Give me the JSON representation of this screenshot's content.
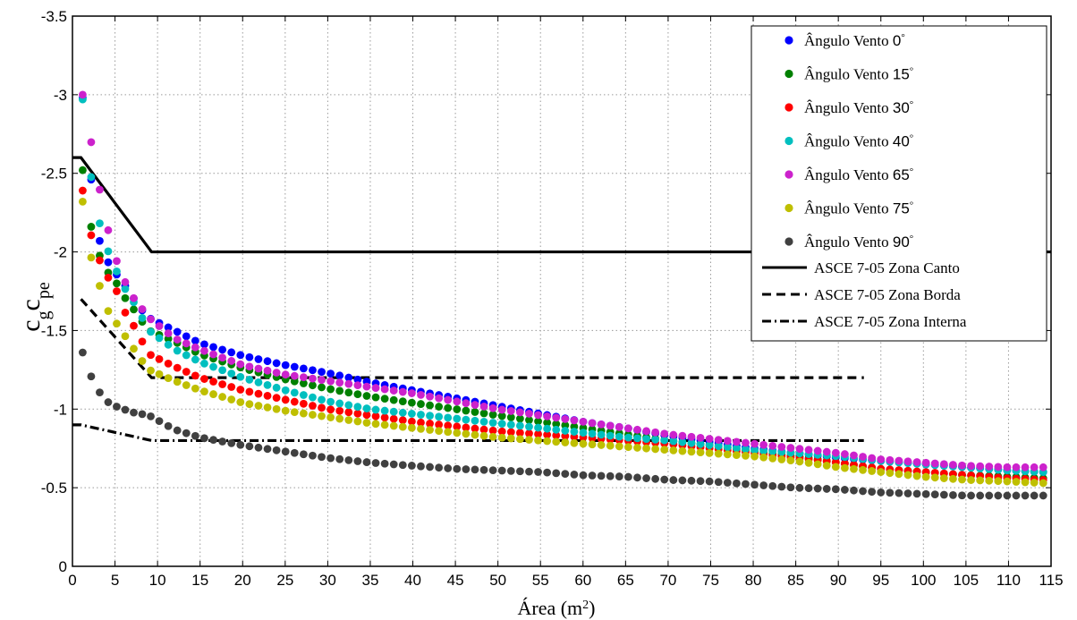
{
  "chart_data": {
    "type": "scatter",
    "title": "",
    "xlabel_main": "Área (m",
    "xlabel_sup": "2",
    "xlabel_close": ")",
    "ylabel_main": "c",
    "ylabel_sub1": "g",
    "ylabel_mid": "c",
    "ylabel_sub2": "pe",
    "xlim": [
      0,
      115
    ],
    "ylim": [
      0,
      -3.5
    ],
    "y_reversed": true,
    "grid": true,
    "legend_position": "top-right",
    "x_ticks": [
      "0",
      "5",
      "10",
      "15",
      "20",
      "25",
      "30",
      "35",
      "40",
      "45",
      "50",
      "55",
      "60",
      "65",
      "70",
      "75",
      "80",
      "85",
      "90",
      "95",
      "100",
      "105",
      "110",
      "115"
    ],
    "y_ticks": [
      "0",
      "-0.5",
      "-1",
      "-1.5",
      "-2",
      "-2.5",
      "-3",
      "-3.5"
    ],
    "series": [
      {
        "name": "Ângulo Vento",
        "angle": "0",
        "color": "#0000ff",
        "kind": "points",
        "anchors": [
          [
            1.2,
            -2.98
          ],
          [
            2,
            -2.55
          ],
          [
            3,
            -2.1
          ],
          [
            4,
            -1.95
          ],
          [
            5,
            -1.87
          ],
          [
            6,
            -1.8
          ],
          [
            7,
            -1.72
          ],
          [
            8,
            -1.64
          ],
          [
            9,
            -1.58
          ],
          [
            12,
            -1.5
          ],
          [
            15,
            -1.42
          ],
          [
            20,
            -1.34
          ],
          [
            25,
            -1.28
          ],
          [
            30,
            -1.23
          ],
          [
            35,
            -1.17
          ],
          [
            40,
            -1.12
          ],
          [
            45,
            -1.07
          ],
          [
            50,
            -1.02
          ],
          [
            55,
            -0.97
          ],
          [
            60,
            -0.92
          ],
          [
            65,
            -0.88
          ],
          [
            70,
            -0.83
          ],
          [
            75,
            -0.79
          ],
          [
            80,
            -0.75
          ],
          [
            85,
            -0.72
          ],
          [
            90,
            -0.69
          ],
          [
            95,
            -0.67
          ],
          [
            100,
            -0.65
          ],
          [
            105,
            -0.63
          ],
          [
            110,
            -0.61
          ],
          [
            114,
            -0.6
          ]
        ]
      },
      {
        "name": "Ângulo Vento",
        "angle": "15",
        "color": "#008000",
        "kind": "points",
        "anchors": [
          [
            1.2,
            -2.52
          ],
          [
            2,
            -2.2
          ],
          [
            3,
            -2.0
          ],
          [
            4,
            -1.88
          ],
          [
            5,
            -1.82
          ],
          [
            6,
            -1.72
          ],
          [
            7,
            -1.65
          ],
          [
            8,
            -1.57
          ],
          [
            9,
            -1.5
          ],
          [
            12,
            -1.43
          ],
          [
            15,
            -1.35
          ],
          [
            20,
            -1.26
          ],
          [
            25,
            -1.19
          ],
          [
            30,
            -1.13
          ],
          [
            35,
            -1.08
          ],
          [
            40,
            -1.04
          ],
          [
            45,
            -1.0
          ],
          [
            50,
            -0.96
          ],
          [
            55,
            -0.92
          ],
          [
            60,
            -0.88
          ],
          [
            65,
            -0.84
          ],
          [
            70,
            -0.8
          ],
          [
            75,
            -0.77
          ],
          [
            80,
            -0.73
          ],
          [
            85,
            -0.7
          ],
          [
            90,
            -0.66
          ],
          [
            95,
            -0.62
          ],
          [
            100,
            -0.6
          ],
          [
            105,
            -0.58
          ],
          [
            110,
            -0.57
          ],
          [
            114,
            -0.56
          ]
        ]
      },
      {
        "name": "Ângulo Vento",
        "angle": "30",
        "color": "#ff0000",
        "kind": "points",
        "anchors": [
          [
            1.2,
            -2.39
          ],
          [
            2,
            -2.14
          ],
          [
            3,
            -1.97
          ],
          [
            4,
            -1.85
          ],
          [
            5,
            -1.78
          ],
          [
            6,
            -1.63
          ],
          [
            7,
            -1.55
          ],
          [
            8,
            -1.45
          ],
          [
            9,
            -1.35
          ],
          [
            12,
            -1.27
          ],
          [
            15,
            -1.2
          ],
          [
            20,
            -1.12
          ],
          [
            25,
            -1.06
          ],
          [
            30,
            -1.0
          ],
          [
            35,
            -0.96
          ],
          [
            40,
            -0.92
          ],
          [
            45,
            -0.89
          ],
          [
            50,
            -0.86
          ],
          [
            55,
            -0.84
          ],
          [
            60,
            -0.82
          ],
          [
            65,
            -0.8
          ],
          [
            70,
            -0.78
          ],
          [
            75,
            -0.75
          ],
          [
            80,
            -0.72
          ],
          [
            85,
            -0.69
          ],
          [
            90,
            -0.66
          ],
          [
            95,
            -0.62
          ],
          [
            100,
            -0.6
          ],
          [
            105,
            -0.58
          ],
          [
            110,
            -0.56
          ],
          [
            114,
            -0.55
          ]
        ]
      },
      {
        "name": "Ângulo Vento",
        "angle": "40",
        "color": "#00bfbf",
        "kind": "points",
        "anchors": [
          [
            1.2,
            -2.97
          ],
          [
            2,
            -2.54
          ],
          [
            3,
            -2.22
          ],
          [
            4,
            -2.03
          ],
          [
            5,
            -1.9
          ],
          [
            6,
            -1.78
          ],
          [
            7,
            -1.7
          ],
          [
            8,
            -1.6
          ],
          [
            9,
            -1.5
          ],
          [
            12,
            -1.38
          ],
          [
            15,
            -1.3
          ],
          [
            20,
            -1.2
          ],
          [
            25,
            -1.12
          ],
          [
            30,
            -1.05
          ],
          [
            35,
            -1.0
          ],
          [
            40,
            -0.97
          ],
          [
            45,
            -0.94
          ],
          [
            50,
            -0.91
          ],
          [
            55,
            -0.88
          ],
          [
            60,
            -0.85
          ],
          [
            65,
            -0.82
          ],
          [
            70,
            -0.8
          ],
          [
            75,
            -0.77
          ],
          [
            80,
            -0.74
          ],
          [
            85,
            -0.72
          ],
          [
            90,
            -0.7
          ],
          [
            95,
            -0.67
          ],
          [
            100,
            -0.65
          ],
          [
            105,
            -0.63
          ],
          [
            110,
            -0.61
          ],
          [
            114,
            -0.6
          ]
        ]
      },
      {
        "name": "Ângulo Vento",
        "angle": "65",
        "color": "#cc22cc",
        "kind": "points",
        "anchors": [
          [
            1.2,
            -3.0
          ],
          [
            2,
            -2.76
          ],
          [
            3,
            -2.45
          ],
          [
            4,
            -2.18
          ],
          [
            5,
            -1.97
          ],
          [
            6,
            -1.83
          ],
          [
            7,
            -1.72
          ],
          [
            8,
            -1.65
          ],
          [
            9,
            -1.58
          ],
          [
            12,
            -1.45
          ],
          [
            15,
            -1.38
          ],
          [
            20,
            -1.28
          ],
          [
            25,
            -1.22
          ],
          [
            30,
            -1.18
          ],
          [
            35,
            -1.14
          ],
          [
            40,
            -1.1
          ],
          [
            45,
            -1.05
          ],
          [
            50,
            -1.0
          ],
          [
            55,
            -0.96
          ],
          [
            60,
            -0.92
          ],
          [
            65,
            -0.88
          ],
          [
            70,
            -0.84
          ],
          [
            75,
            -0.81
          ],
          [
            80,
            -0.78
          ],
          [
            85,
            -0.75
          ],
          [
            90,
            -0.72
          ],
          [
            95,
            -0.68
          ],
          [
            100,
            -0.66
          ],
          [
            105,
            -0.64
          ],
          [
            110,
            -0.63
          ],
          [
            114,
            -0.63
          ]
        ]
      },
      {
        "name": "Ângulo Vento",
        "angle": "75",
        "color": "#bfbf00",
        "kind": "points",
        "anchors": [
          [
            1.2,
            -2.32
          ],
          [
            2,
            -2.0
          ],
          [
            3,
            -1.82
          ],
          [
            4,
            -1.64
          ],
          [
            5,
            -1.56
          ],
          [
            6,
            -1.48
          ],
          [
            7,
            -1.4
          ],
          [
            8,
            -1.32
          ],
          [
            9,
            -1.25
          ],
          [
            12,
            -1.18
          ],
          [
            15,
            -1.12
          ],
          [
            20,
            -1.04
          ],
          [
            25,
            -0.99
          ],
          [
            30,
            -0.95
          ],
          [
            35,
            -0.91
          ],
          [
            40,
            -0.88
          ],
          [
            45,
            -0.85
          ],
          [
            50,
            -0.82
          ],
          [
            55,
            -0.8
          ],
          [
            60,
            -0.78
          ],
          [
            65,
            -0.76
          ],
          [
            70,
            -0.74
          ],
          [
            75,
            -0.72
          ],
          [
            80,
            -0.7
          ],
          [
            85,
            -0.67
          ],
          [
            90,
            -0.63
          ],
          [
            95,
            -0.6
          ],
          [
            100,
            -0.57
          ],
          [
            105,
            -0.55
          ],
          [
            110,
            -0.54
          ],
          [
            114,
            -0.53
          ]
        ]
      },
      {
        "name": "Ângulo Vento",
        "angle": "90",
        "color": "#404040",
        "kind": "points",
        "anchors": [
          [
            1.2,
            -1.36
          ],
          [
            2,
            -1.23
          ],
          [
            3,
            -1.12
          ],
          [
            4,
            -1.05
          ],
          [
            5,
            -1.02
          ],
          [
            6,
            -1.0
          ],
          [
            7,
            -0.98
          ],
          [
            8,
            -0.97
          ],
          [
            9,
            -0.96
          ],
          [
            12,
            -0.87
          ],
          [
            15,
            -0.82
          ],
          [
            20,
            -0.77
          ],
          [
            25,
            -0.73
          ],
          [
            30,
            -0.69
          ],
          [
            35,
            -0.66
          ],
          [
            40,
            -0.64
          ],
          [
            45,
            -0.62
          ],
          [
            50,
            -0.61
          ],
          [
            55,
            -0.6
          ],
          [
            60,
            -0.58
          ],
          [
            65,
            -0.57
          ],
          [
            70,
            -0.55
          ],
          [
            75,
            -0.54
          ],
          [
            80,
            -0.52
          ],
          [
            85,
            -0.5
          ],
          [
            90,
            -0.49
          ],
          [
            95,
            -0.47
          ],
          [
            100,
            -0.46
          ],
          [
            105,
            -0.45
          ],
          [
            110,
            -0.45
          ],
          [
            114,
            -0.45
          ]
        ]
      },
      {
        "name": "ASCE 7-05 Zona Canto",
        "color": "#000000",
        "kind": "line",
        "dash": "solid",
        "x": [
          0,
          1,
          9.3,
          115
        ],
        "y": [
          -2.6,
          -2.6,
          -2.0,
          -2.0
        ]
      },
      {
        "name": "ASCE 7-05 Zona Borda",
        "color": "#000000",
        "kind": "line",
        "dash": "dashed",
        "x": [
          1,
          9.3,
          93
        ],
        "y": [
          -1.7,
          -1.2,
          -1.2
        ]
      },
      {
        "name": "ASCE 7-05 Zona Interna",
        "color": "#000000",
        "kind": "line",
        "dash": "dashdot",
        "x": [
          0,
          1,
          9.3,
          93
        ],
        "y": [
          -0.9,
          -0.9,
          -0.8,
          -0.8
        ]
      }
    ]
  }
}
